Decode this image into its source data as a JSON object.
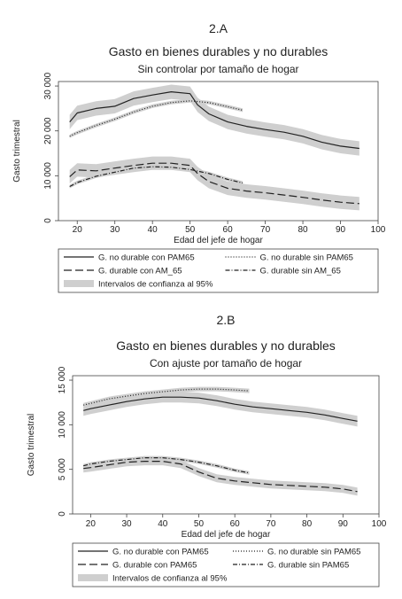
{
  "chart_data": [
    {
      "type": "line",
      "panel_label": "2.A",
      "title": "Gasto en bienes durables y no durables",
      "subtitle": "Sin controlar por tamaño de hogar",
      "xlabel": "Edad del jefe de hogar",
      "ylabel": "Gasto trimestral",
      "xlim": [
        15,
        100
      ],
      "ylim": [
        0,
        31000
      ],
      "xticks": [
        20,
        30,
        40,
        50,
        60,
        70,
        80,
        90,
        100
      ],
      "yticks": [
        0,
        10000,
        20000,
        30000
      ],
      "ytick_labels": [
        "0",
        "10 000",
        "20 000",
        "30 000"
      ],
      "legend_ci_label": "Intervalos de confianza al 95%",
      "series": [
        {
          "name": "G. no durable con PAM65",
          "style": "solid",
          "ci": 1600,
          "x": [
            18,
            20,
            25,
            30,
            35,
            40,
            45,
            50,
            52,
            55,
            60,
            65,
            70,
            75,
            80,
            85,
            90,
            95
          ],
          "y": [
            22000,
            24000,
            25000,
            25500,
            27200,
            28000,
            28700,
            28300,
            25800,
            23800,
            22000,
            21000,
            20300,
            19700,
            18800,
            17500,
            16600,
            16100
          ]
        },
        {
          "name": "G. no durable sin PAM65",
          "style": "dotted",
          "ci": 400,
          "x": [
            18,
            20,
            25,
            30,
            35,
            40,
            45,
            50,
            55,
            60,
            64
          ],
          "y": [
            18800,
            19600,
            21200,
            22600,
            24200,
            25500,
            26300,
            26700,
            26300,
            25400,
            24600
          ]
        },
        {
          "name": "G. durable con AM_65",
          "style": "dash",
          "ci": 1500,
          "x": [
            18,
            20,
            25,
            30,
            35,
            40,
            45,
            50,
            52,
            55,
            60,
            65,
            70,
            75,
            80,
            85,
            90,
            95
          ],
          "y": [
            9800,
            11300,
            11100,
            11700,
            12300,
            12800,
            12800,
            12300,
            10500,
            8700,
            7200,
            6600,
            6200,
            5700,
            5200,
            4600,
            4100,
            3800
          ]
        },
        {
          "name": "G. durable sin AM_65",
          "style": "dashdot",
          "ci": 400,
          "x": [
            18,
            20,
            25,
            30,
            35,
            40,
            45,
            50,
            55,
            60,
            64
          ],
          "y": [
            7600,
            8500,
            9900,
            10800,
            11700,
            12000,
            11900,
            11400,
            10500,
            9200,
            8400
          ]
        }
      ]
    },
    {
      "type": "line",
      "panel_label": "2.B",
      "title": "Gasto en bienes durables y no durables",
      "subtitle": "Con ajuste por tamaño de hogar",
      "xlabel": "Edad del jefe de hogar",
      "ylabel": "Gasto trimestral",
      "xlim": [
        15,
        100
      ],
      "ylim": [
        0,
        15500
      ],
      "xticks": [
        20,
        30,
        40,
        50,
        60,
        70,
        80,
        90,
        100
      ],
      "yticks": [
        0,
        5000,
        10000,
        15000
      ],
      "ytick_labels": [
        "0",
        "5 000",
        "10 000",
        "15 000"
      ],
      "legend_ci_label": "Intervalos de confianza al 95%",
      "series": [
        {
          "name": "G. no durable con PAM65",
          "style": "solid",
          "ci": 600,
          "x": [
            18,
            20,
            25,
            30,
            35,
            40,
            45,
            50,
            55,
            60,
            65,
            70,
            75,
            80,
            85,
            90,
            94
          ],
          "y": [
            11600,
            11800,
            12200,
            12600,
            12900,
            13100,
            13100,
            13000,
            12700,
            12300,
            12000,
            11800,
            11600,
            11400,
            11100,
            10700,
            10400
          ]
        },
        {
          "name": "G. no durable sin PAM65",
          "style": "dotted",
          "ci": 250,
          "x": [
            18,
            20,
            25,
            30,
            35,
            40,
            45,
            50,
            55,
            60,
            64
          ],
          "y": [
            12200,
            12400,
            12900,
            13200,
            13500,
            13700,
            13900,
            14000,
            14000,
            13900,
            13800
          ]
        },
        {
          "name": "G. durable con PAM65",
          "style": "dash",
          "ci": 450,
          "x": [
            18,
            20,
            25,
            30,
            35,
            40,
            45,
            50,
            55,
            60,
            65,
            70,
            75,
            80,
            85,
            90,
            94
          ],
          "y": [
            5100,
            5200,
            5500,
            5800,
            5900,
            5900,
            5600,
            4700,
            4000,
            3700,
            3500,
            3300,
            3200,
            3100,
            3000,
            2800,
            2500
          ]
        },
        {
          "name": "G. durable sin PAM65",
          "style": "dashdot",
          "ci": 200,
          "x": [
            18,
            20,
            25,
            30,
            35,
            40,
            45,
            50,
            55,
            60,
            64
          ],
          "y": [
            5400,
            5600,
            5900,
            6100,
            6300,
            6300,
            6100,
            5800,
            5400,
            4900,
            4600
          ]
        }
      ]
    }
  ]
}
